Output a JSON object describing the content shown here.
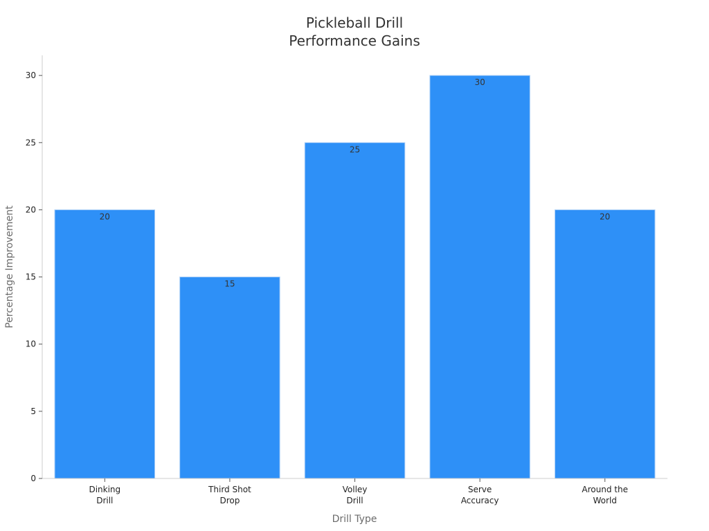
{
  "chart_data": {
    "type": "bar",
    "title_lines": [
      "Pickleball Drill",
      "Performance Gains"
    ],
    "xlabel": "Drill Type",
    "ylabel": "Percentage Improvement",
    "categories": [
      [
        "Dinking",
        "Drill"
      ],
      [
        "Third Shot",
        "Drop"
      ],
      [
        "Volley",
        "Drill"
      ],
      [
        "Serve",
        "Accuracy"
      ],
      [
        "Around the",
        "World"
      ]
    ],
    "values": [
      20,
      15,
      25,
      30,
      20
    ],
    "data_labels": [
      "20",
      "15",
      "25",
      "30",
      "20"
    ],
    "ylim": [
      0,
      31.5
    ],
    "yticks": [
      0,
      5,
      10,
      15,
      20,
      25,
      30
    ],
    "grid": false,
    "bar_color": "#2e90f7",
    "bar_edge_color": "#a9cef7",
    "axis_color": "#cccccc"
  }
}
